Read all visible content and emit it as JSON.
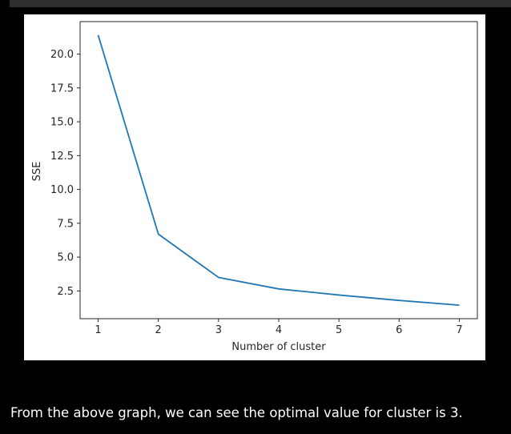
{
  "caption": "From the above graph, we can see the optimal value for cluster is 3.",
  "chart_data": {
    "type": "line",
    "x": [
      1,
      2,
      3,
      4,
      5,
      6,
      7
    ],
    "series": [
      {
        "values": [
          21.4,
          6.7,
          3.5,
          2.65,
          2.2,
          1.8,
          1.45
        ],
        "color": "#1f77b4"
      }
    ],
    "xlabel": "Number of cluster",
    "ylabel": "SSE",
    "xticks": [
      1,
      2,
      3,
      4,
      5,
      6,
      7
    ],
    "yticks": [
      "2.5",
      "5.0",
      "7.5",
      "10.0",
      "12.5",
      "15.0",
      "17.5",
      "20.0"
    ],
    "xlim": [
      0.7,
      7.3
    ],
    "ylim": [
      0.45,
      22.4
    ],
    "grid": false
  }
}
